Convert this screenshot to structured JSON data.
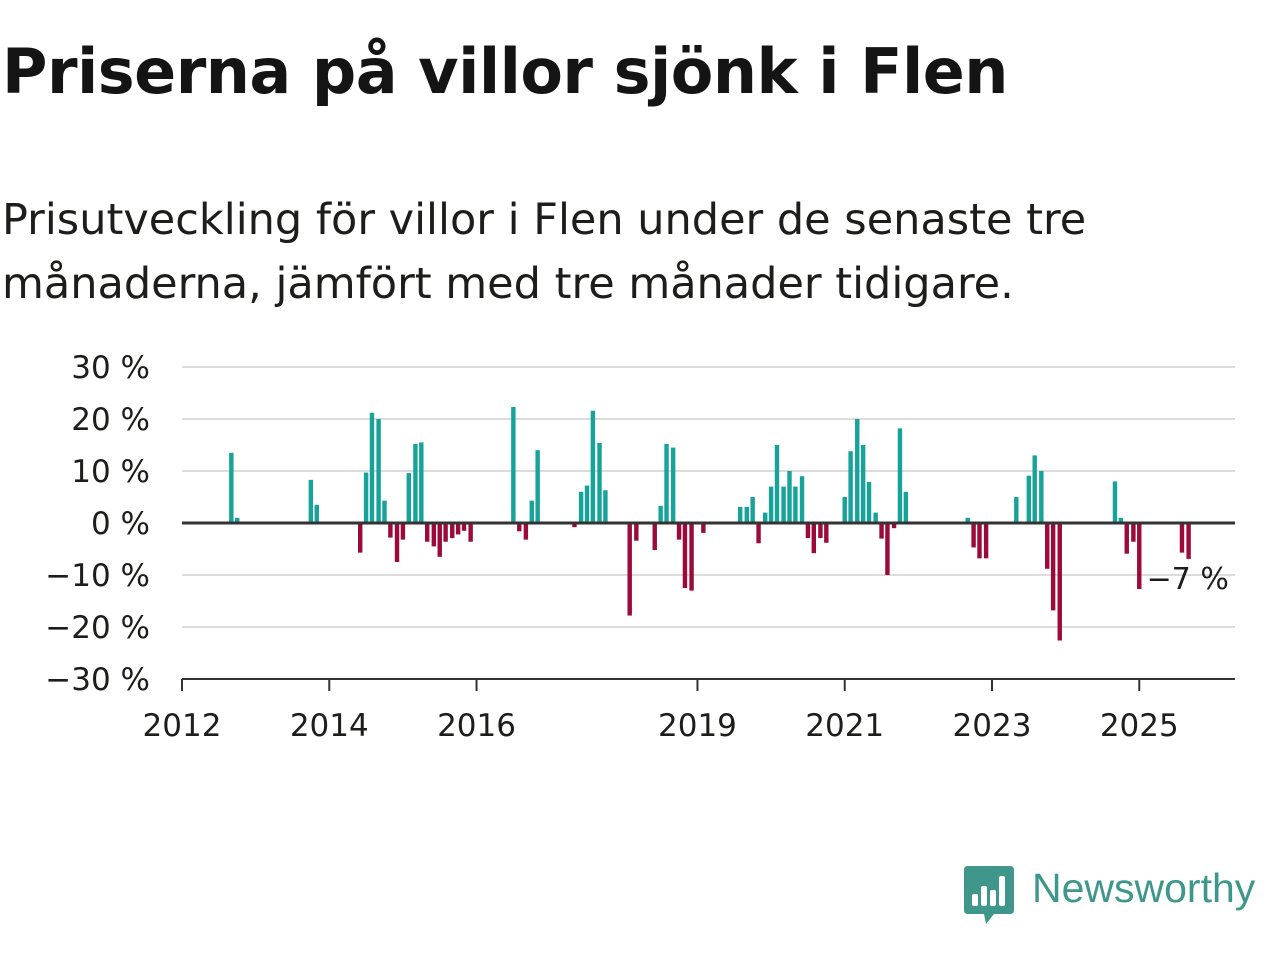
{
  "title": "Priserna på villor sjönk i Flen",
  "subtitle": "Prisutveckling för villor i Flen under de senaste tre månaderna, jämfört med tre månader tidigare.",
  "brand": {
    "name": "Newsworthy",
    "icon": "bar-chart-speech-bubble-icon"
  },
  "colors": {
    "positive": "#17a39a",
    "negative": "#9c0a3c",
    "grid": "#dcdcdc",
    "axis": "#333333",
    "text": "#1d1d1b",
    "brand": "#3f978b"
  },
  "chart_data": {
    "type": "bar",
    "title": "Priserna på villor sjönk i Flen",
    "xlabel": "",
    "ylabel": "",
    "ylim": [
      -30,
      30
    ],
    "yticks": [
      30,
      20,
      10,
      0,
      -10,
      -20,
      -30
    ],
    "ytick_labels": [
      "30 %",
      "20 %",
      "10 %",
      "0 %",
      "−10 %",
      "−20 %",
      "−30 %"
    ],
    "xlim": [
      2012.0,
      2026.3
    ],
    "xticks": [
      2012,
      2014,
      2016,
      2019,
      2021,
      2023,
      2025
    ],
    "xtick_labels": [
      "2012",
      "2014",
      "2016",
      "2019",
      "2021",
      "2023",
      "2025"
    ],
    "grid": true,
    "annotation": {
      "text": "−7 %"
    },
    "x": [
      2012.67,
      2012.75,
      2013.75,
      2013.83,
      2014.42,
      2014.5,
      2014.58,
      2014.67,
      2014.75,
      2014.83,
      2014.92,
      2015.0,
      2015.08,
      2015.17,
      2015.25,
      2015.33,
      2015.42,
      2015.5,
      2015.58,
      2015.67,
      2015.75,
      2015.83,
      2015.92,
      2016.5,
      2016.58,
      2016.67,
      2016.75,
      2016.83,
      2017.33,
      2017.42,
      2017.5,
      2017.58,
      2017.67,
      2017.75,
      2017.83,
      2018.08,
      2018.17,
      2018.42,
      2018.5,
      2018.58,
      2018.67,
      2018.75,
      2018.83,
      2018.92,
      2019.08,
      2019.58,
      2019.67,
      2019.75,
      2019.83,
      2019.92,
      2020.0,
      2020.08,
      2020.17,
      2020.25,
      2020.33,
      2020.42,
      2020.5,
      2020.58,
      2020.67,
      2020.75,
      2020.83,
      2021.0,
      2021.08,
      2021.17,
      2021.25,
      2021.33,
      2021.42,
      2021.5,
      2021.58,
      2021.67,
      2021.75,
      2021.83,
      2022.67,
      2022.75,
      2022.83,
      2022.92,
      2023.33,
      2023.5,
      2023.58,
      2023.67,
      2023.75,
      2023.83,
      2023.92,
      2024.67,
      2024.75,
      2024.83,
      2024.92,
      2025.0,
      2025.58,
      2025.67
    ],
    "values": [
      13.5,
      1,
      8.3,
      3.5,
      -5.7,
      9.7,
      21.2,
      20,
      4.3,
      -2.8,
      -7.5,
      -3.2,
      9.6,
      15.2,
      15.5,
      -3.6,
      -4.5,
      -6.5,
      -3.6,
      -2.9,
      -2.2,
      -1.5,
      -3.6,
      22.3,
      -1.6,
      -3.2,
      4.3,
      14,
      -0.8,
      6,
      7.2,
      21.6,
      15.4,
      6.3,
      0,
      -17.8,
      -3.4,
      -5.2,
      3.3,
      15.2,
      14.5,
      -3.2,
      -12.5,
      -13,
      -1.9,
      3.1,
      3.1,
      5,
      -3.9,
      2,
      7,
      15,
      7,
      10,
      7,
      9,
      -2.9,
      -5.8,
      -2.9,
      -3.8,
      0,
      5,
      13.8,
      20,
      15,
      7.9,
      2,
      -3,
      -10,
      -1,
      18.2,
      6,
      1,
      -4.7,
      -6.8,
      -6.8,
      5,
      9.1,
      13,
      10,
      -8.8,
      -16.8,
      -22.6,
      8,
      1,
      -5.9,
      -3.6,
      -12.7,
      -5.7,
      -6.9
    ]
  }
}
